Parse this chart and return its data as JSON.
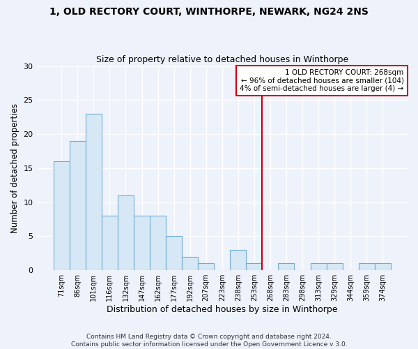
{
  "title": "1, OLD RECTORY COURT, WINTHORPE, NEWARK, NG24 2NS",
  "subtitle": "Size of property relative to detached houses in Winthorpe",
  "xlabel": "Distribution of detached houses by size in Winthorpe",
  "ylabel": "Number of detached properties",
  "bar_color": "#d6e8f5",
  "bar_edge_color": "#6aaed6",
  "categories": [
    "71sqm",
    "86sqm",
    "101sqm",
    "116sqm",
    "132sqm",
    "147sqm",
    "162sqm",
    "177sqm",
    "192sqm",
    "207sqm",
    "223sqm",
    "238sqm",
    "253sqm",
    "268sqm",
    "283sqm",
    "298sqm",
    "313sqm",
    "329sqm",
    "344sqm",
    "359sqm",
    "374sqm"
  ],
  "values": [
    16,
    19,
    23,
    8,
    11,
    8,
    8,
    5,
    2,
    1,
    0,
    3,
    1,
    0,
    1,
    0,
    1,
    1,
    0,
    1,
    1
  ],
  "ylim": [
    0,
    30
  ],
  "yticks": [
    0,
    5,
    10,
    15,
    20,
    25,
    30
  ],
  "marker_index": 13,
  "annotation_title": "1 OLD RECTORY COURT: 268sqm",
  "annotation_line1": "← 96% of detached houses are smaller (104)",
  "annotation_line2": "4% of semi-detached houses are larger (4) →",
  "annotation_box_color": "#ffffff",
  "annotation_box_edge_color": "#cc0000",
  "marker_line_color": "#cc0000",
  "footer1": "Contains HM Land Registry data © Crown copyright and database right 2024.",
  "footer2": "Contains public sector information licensed under the Open Government Licence v 3.0.",
  "plot_bg_color": "#eef2fb",
  "fig_bg_color": "#eef2fb",
  "grid_color": "#ffffff"
}
